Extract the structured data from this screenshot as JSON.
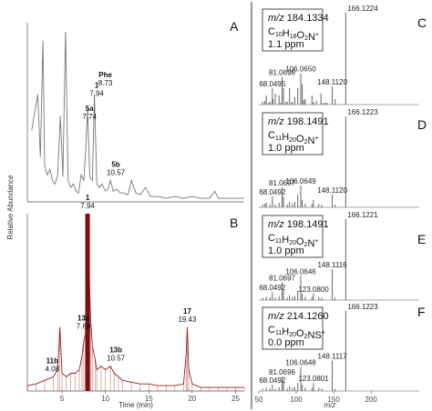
{
  "chart_data": [
    {
      "type": "line",
      "panel": "A",
      "xlim": [
        1,
        26
      ],
      "series": [
        {
          "x": [
            1.5,
            2.2,
            2.5,
            2.8,
            3.0,
            3.3,
            3.6,
            3.9,
            4.2,
            4.5,
            4.8,
            5.1,
            5.4,
            5.7,
            6.0,
            6.3,
            6.6,
            6.9,
            7.2,
            7.5,
            7.74,
            7.94,
            8.2,
            8.5,
            8.73,
            9.0,
            9.3,
            9.6,
            10.0,
            10.3,
            10.57,
            10.9,
            11.3,
            11.7,
            12.1,
            12.6,
            13.0,
            13.5,
            14.0,
            14.6,
            15.2,
            16.0,
            17.0,
            18.0,
            19.0,
            20.0,
            21.0,
            22.0,
            22.6,
            23.0,
            24.0,
            25.0,
            26.0
          ],
          "y": [
            40,
            60,
            25,
            90,
            20,
            15,
            18,
            12,
            10,
            15,
            48,
            14,
            95,
            12,
            8,
            10,
            6,
            5,
            15,
            12,
            30,
            52,
            14,
            12,
            60,
            10,
            8,
            10,
            6,
            7,
            12,
            6,
            7,
            5,
            5,
            4,
            12,
            5,
            4,
            8,
            3,
            3,
            2,
            3,
            2,
            3,
            2,
            2,
            6,
            2,
            2,
            2,
            2
          ]
        }
      ],
      "peaks": [
        {
          "label": "5a",
          "time": "7.74"
        },
        {
          "label": "1",
          "time": "7.94"
        },
        {
          "label": "Phe",
          "time": "8.73"
        },
        {
          "label": "5b",
          "time": "10.57"
        }
      ]
    },
    {
      "type": "line",
      "panel": "B",
      "xlim": [
        1,
        26
      ],
      "xlabel": "Time (min)",
      "xticks": [
        "5",
        "10",
        "15",
        "20",
        "25"
      ],
      "series": [
        {
          "x": [
            1.0,
            2.0,
            3.0,
            4.0,
            4.5,
            4.75,
            5.0,
            5.5,
            6.0,
            6.5,
            7.0,
            7.3,
            7.5,
            7.69,
            7.8,
            7.9,
            7.94,
            8.0,
            8.1,
            8.2,
            8.3,
            8.5,
            8.8,
            9.0,
            9.5,
            10.0,
            10.57,
            11.0,
            11.5,
            12.0,
            13.0,
            14.0,
            15.0,
            16.0,
            17.0,
            18.0,
            19.0,
            19.3,
            19.43,
            19.6,
            20.0,
            21.0,
            22.0,
            23.0,
            24.0,
            25.0,
            26.0
          ],
          "y": [
            3,
            4,
            6,
            8,
            12,
            36,
            10,
            8,
            10,
            10,
            12,
            20,
            28,
            32,
            60,
            90,
            100,
            95,
            80,
            55,
            40,
            25,
            18,
            12,
            14,
            12,
            14,
            10,
            8,
            6,
            5,
            4,
            4,
            3,
            3,
            3,
            4,
            20,
            36,
            12,
            4,
            2,
            2,
            2,
            2,
            2,
            2
          ]
        }
      ],
      "peaks": [
        {
          "label": "1",
          "time": "7.94"
        },
        {
          "label": "11b",
          "time": "4.08"
        },
        {
          "label": "13a",
          "time": "7.69"
        },
        {
          "label": "13b",
          "time": "10.57"
        },
        {
          "label": "17",
          "time": "19.43"
        }
      ]
    },
    {
      "type": "bar",
      "panel": "C",
      "formula_mz": "184.1334",
      "formula_html": "C<sub>10</sub>H<sub>18</sub>O<sub>2</sub>N<sup>+</sup>",
      "ppm": "1.1 ppm",
      "xlim": [
        50,
        240
      ],
      "mz": [
        55,
        58,
        60,
        63,
        65,
        68.05,
        69,
        72,
        77,
        79,
        81.07,
        83,
        86,
        88,
        91,
        93,
        95,
        98,
        102,
        106.07,
        108,
        110,
        112,
        121,
        123,
        127,
        133,
        136,
        139,
        141,
        148.11,
        152,
        166.12
      ],
      "intensity": [
        3,
        4,
        10,
        2,
        3,
        18,
        6,
        12,
        10,
        2,
        30,
        18,
        3,
        3,
        18,
        2,
        3,
        8,
        18,
        34,
        22,
        5,
        6,
        10,
        3,
        4,
        12,
        2,
        2,
        2,
        20,
        6,
        100
      ],
      "labels": [
        {
          "mz": 166.1224,
          "text": "166.1224"
        },
        {
          "mz": 106.065,
          "text": "106.0650"
        },
        {
          "mz": 81.0698,
          "text": "81.0698"
        },
        {
          "mz": 148.112,
          "text": "148.1120"
        },
        {
          "mz": 68.0495,
          "text": "68.0495"
        }
      ]
    },
    {
      "type": "bar",
      "panel": "D",
      "formula_mz": "198.1491",
      "formula_html": "C<sub>11</sub>H<sub>20</sub>O<sub>2</sub>N<sup>+</sup>",
      "ppm": "1.0 ppm",
      "xlim": [
        50,
        240
      ],
      "mz": [
        55,
        58,
        60,
        65,
        68.05,
        72,
        77,
        81.07,
        83,
        88,
        91,
        95,
        98,
        102,
        106.06,
        108,
        112,
        121,
        123,
        130,
        134,
        148.11,
        152,
        166.12
      ],
      "intensity": [
        3,
        4,
        5,
        3,
        12,
        3,
        5,
        22,
        12,
        3,
        6,
        4,
        6,
        14,
        24,
        8,
        4,
        4,
        8,
        4,
        3,
        14,
        3,
        100
      ],
      "labels": [
        {
          "mz": 166.1223,
          "text": "166.1223"
        },
        {
          "mz": 106.0649,
          "text": "106.0649"
        },
        {
          "mz": 81.0697,
          "text": "81.0697"
        },
        {
          "mz": 148.112,
          "text": "148.1120"
        },
        {
          "mz": 68.0492,
          "text": "68.0492"
        }
      ]
    },
    {
      "type": "bar",
      "panel": "E",
      "formula_mz": "198.1491",
      "formula_html": "C<sub>11</sub>H<sub>20</sub>O<sub>2</sub>N<sup>+</sup>",
      "ppm": "1.0 ppm",
      "xlim": [
        50,
        240
      ],
      "mz": [
        55,
        60,
        65,
        68.05,
        72,
        77,
        81.07,
        83,
        88,
        91,
        95,
        98,
        102,
        106.06,
        108,
        112,
        121,
        123.08,
        130,
        134,
        148.11,
        152,
        166.12
      ],
      "intensity": [
        3,
        4,
        3,
        10,
        3,
        5,
        22,
        12,
        3,
        6,
        4,
        5,
        12,
        30,
        8,
        4,
        4,
        8,
        4,
        3,
        38,
        3,
        100
      ],
      "labels": [
        {
          "mz": 166.1221,
          "text": "166.1221"
        },
        {
          "mz": 148.1116,
          "text": "148.1116"
        },
        {
          "mz": 81.0697,
          "text": "81.0697"
        },
        {
          "mz": 106.0646,
          "text": "106.0646"
        },
        {
          "mz": 123.08,
          "text": "123.0800"
        },
        {
          "mz": 68.0492,
          "text": "68.0492"
        }
      ]
    },
    {
      "type": "bar",
      "panel": "F",
      "formula_mz": "214.1260",
      "formula_html": "C<sub>11</sub>H<sub>20</sub>O<sub>2</sub>NS<sup>+</sup>",
      "ppm": "0.0 ppm",
      "xlim": [
        50,
        240
      ],
      "xlabel": "m/z",
      "xticks": [
        "50",
        "100",
        "150",
        "200"
      ],
      "mz": [
        55,
        60,
        65,
        68.05,
        72,
        77,
        81.07,
        83,
        88,
        91,
        95,
        98,
        102,
        106.06,
        108,
        112,
        121,
        123.08,
        130,
        134,
        148.11,
        152,
        166.12
      ],
      "intensity": [
        3,
        4,
        3,
        8,
        3,
        5,
        18,
        12,
        3,
        6,
        4,
        5,
        10,
        30,
        8,
        4,
        4,
        10,
        4,
        3,
        38,
        3,
        100
      ],
      "labels": [
        {
          "mz": 166.1223,
          "text": "166.1223"
        },
        {
          "mz": 148.1117,
          "text": "148.1117"
        },
        {
          "mz": 81.0696,
          "text": "81.0696"
        },
        {
          "mz": 106.0648,
          "text": "106.0648"
        },
        {
          "mz": 123.0801,
          "text": "123.0801"
        },
        {
          "mz": 68.0492,
          "text": "68.0492"
        }
      ]
    }
  ],
  "chrom_ylabel": "Relative Abundance",
  "panel_letters": [
    "A",
    "B",
    "C",
    "D",
    "E",
    "F"
  ],
  "colors": {
    "chrom_a": "#777777",
    "chrom_b": "#9b1c1c",
    "spectrum": "#666666",
    "axis": "#555555",
    "separator": "#333333"
  }
}
